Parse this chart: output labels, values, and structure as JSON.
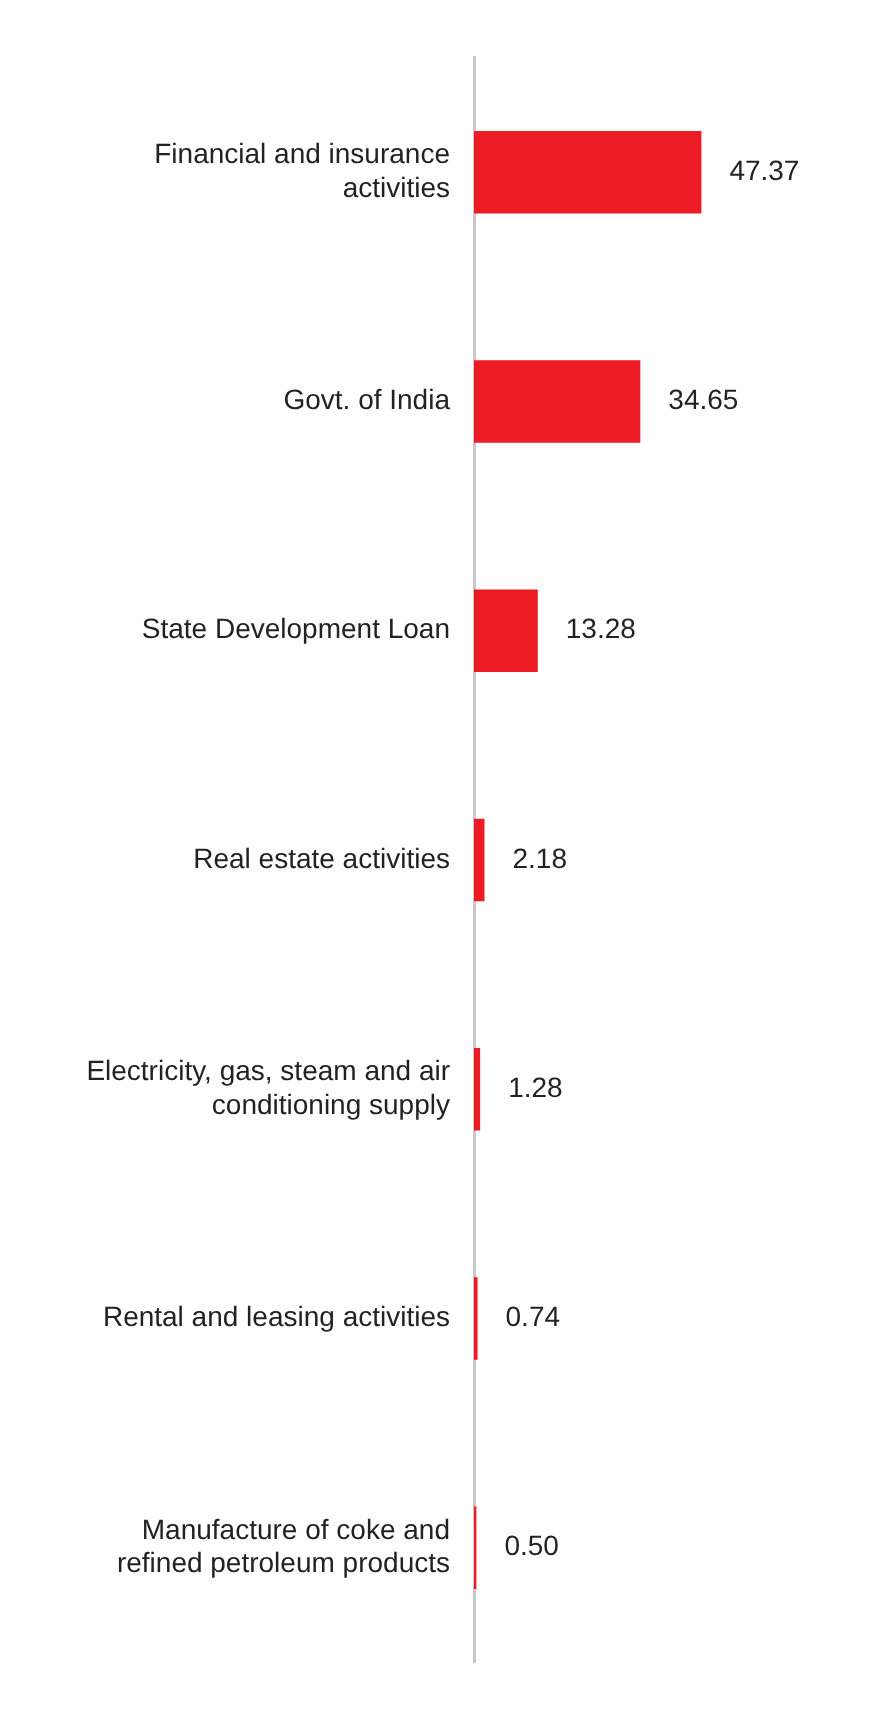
{
  "chart_data": {
    "type": "bar",
    "orientation": "horizontal",
    "categories": [
      "Financial and insurance activities",
      "Govt. of India",
      "State Development Loan",
      "Real estate activities",
      "Electricity, gas, steam and air conditioning supply",
      "Rental and leasing activities",
      "Manufacture of coke and refined petroleum products"
    ],
    "values": [
      47.37,
      34.65,
      13.28,
      2.18,
      1.28,
      0.74,
      0.5
    ],
    "value_labels": [
      "47.37",
      "34.65",
      "13.28",
      "2.18",
      "1.28",
      "0.74",
      "0.50"
    ],
    "color": "#ed1c24",
    "tick_labels": "y",
    "grid": false,
    "legend": false
  }
}
